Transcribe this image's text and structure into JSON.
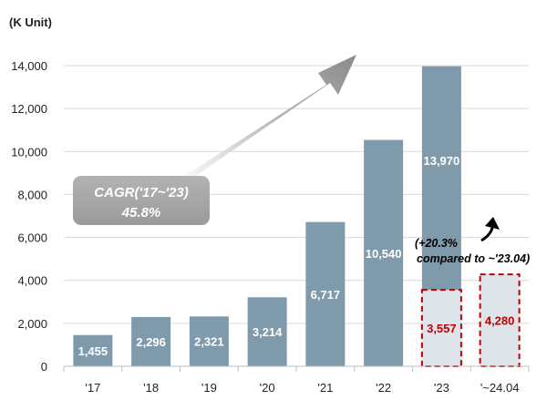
{
  "chart_data": {
    "type": "bar",
    "unit_label": "(K Unit)",
    "categories": [
      "'17",
      "'18",
      "'19",
      "'20",
      "'21",
      "'22",
      "'23",
      "'~24.04"
    ],
    "values": [
      1455,
      2296,
      2321,
      3214,
      6717,
      10540,
      13970,
      null
    ],
    "value_labels": [
      "1,455",
      "2,296",
      "2,321",
      "3,214",
      "6,717",
      "10,540",
      "13,970",
      ""
    ],
    "partial_values": [
      null,
      null,
      null,
      null,
      null,
      null,
      3557,
      4280
    ],
    "partial_labels": [
      "",
      "",
      "",
      "",
      "",
      "",
      "3,557",
      "4,280"
    ],
    "ylim": [
      0,
      14000
    ],
    "yticks": [
      0,
      2000,
      4000,
      6000,
      8000,
      10000,
      12000,
      14000
    ],
    "ytick_labels": [
      "0",
      "2,000",
      "4,000",
      "6,000",
      "8,000",
      "10,000",
      "12,000",
      "14,000"
    ],
    "grid": true,
    "cagr_box": {
      "line1": "CAGR('17~'23)",
      "line2": "45.8%"
    },
    "growth_note": {
      "line1": "(+20.3%",
      "line2": "compared to ~'23.04)"
    },
    "colors": {
      "bar": "#7f9aab",
      "partial_fill": "#dde4ea",
      "partial_border": "#c00000",
      "partial_text": "#c00000",
      "grid": "#d9d9d9",
      "cagr_box": "#a6a6a6"
    }
  }
}
